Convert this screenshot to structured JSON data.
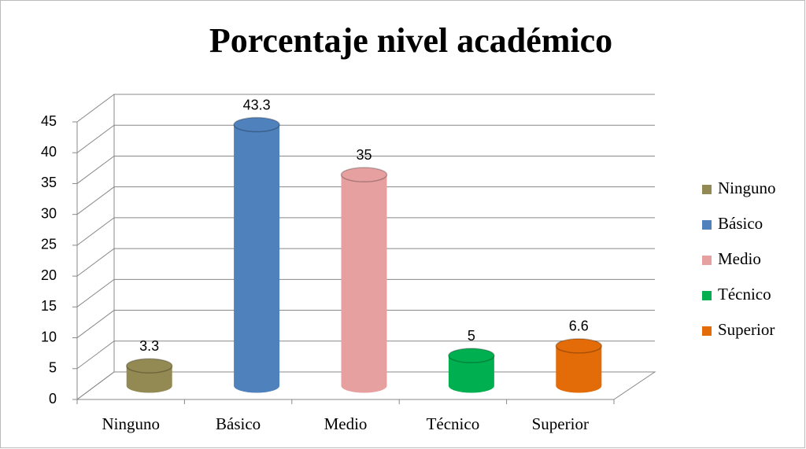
{
  "chart_data": {
    "type": "bar3d",
    "title": "Porcentaje nivel académico",
    "categories": [
      "Ninguno",
      "Básico",
      "Medio",
      "Técnico",
      "Superior"
    ],
    "values": [
      3.3,
      43.3,
      35,
      5,
      6.6
    ],
    "colors": [
      "#938953",
      "#4f81bd",
      "#e6a0a0",
      "#00b050",
      "#e36c09"
    ],
    "ylim": [
      0,
      45
    ],
    "yticks": [
      0,
      5,
      10,
      15,
      20,
      25,
      30,
      35,
      40,
      45
    ],
    "grid": true,
    "legend": "right"
  }
}
